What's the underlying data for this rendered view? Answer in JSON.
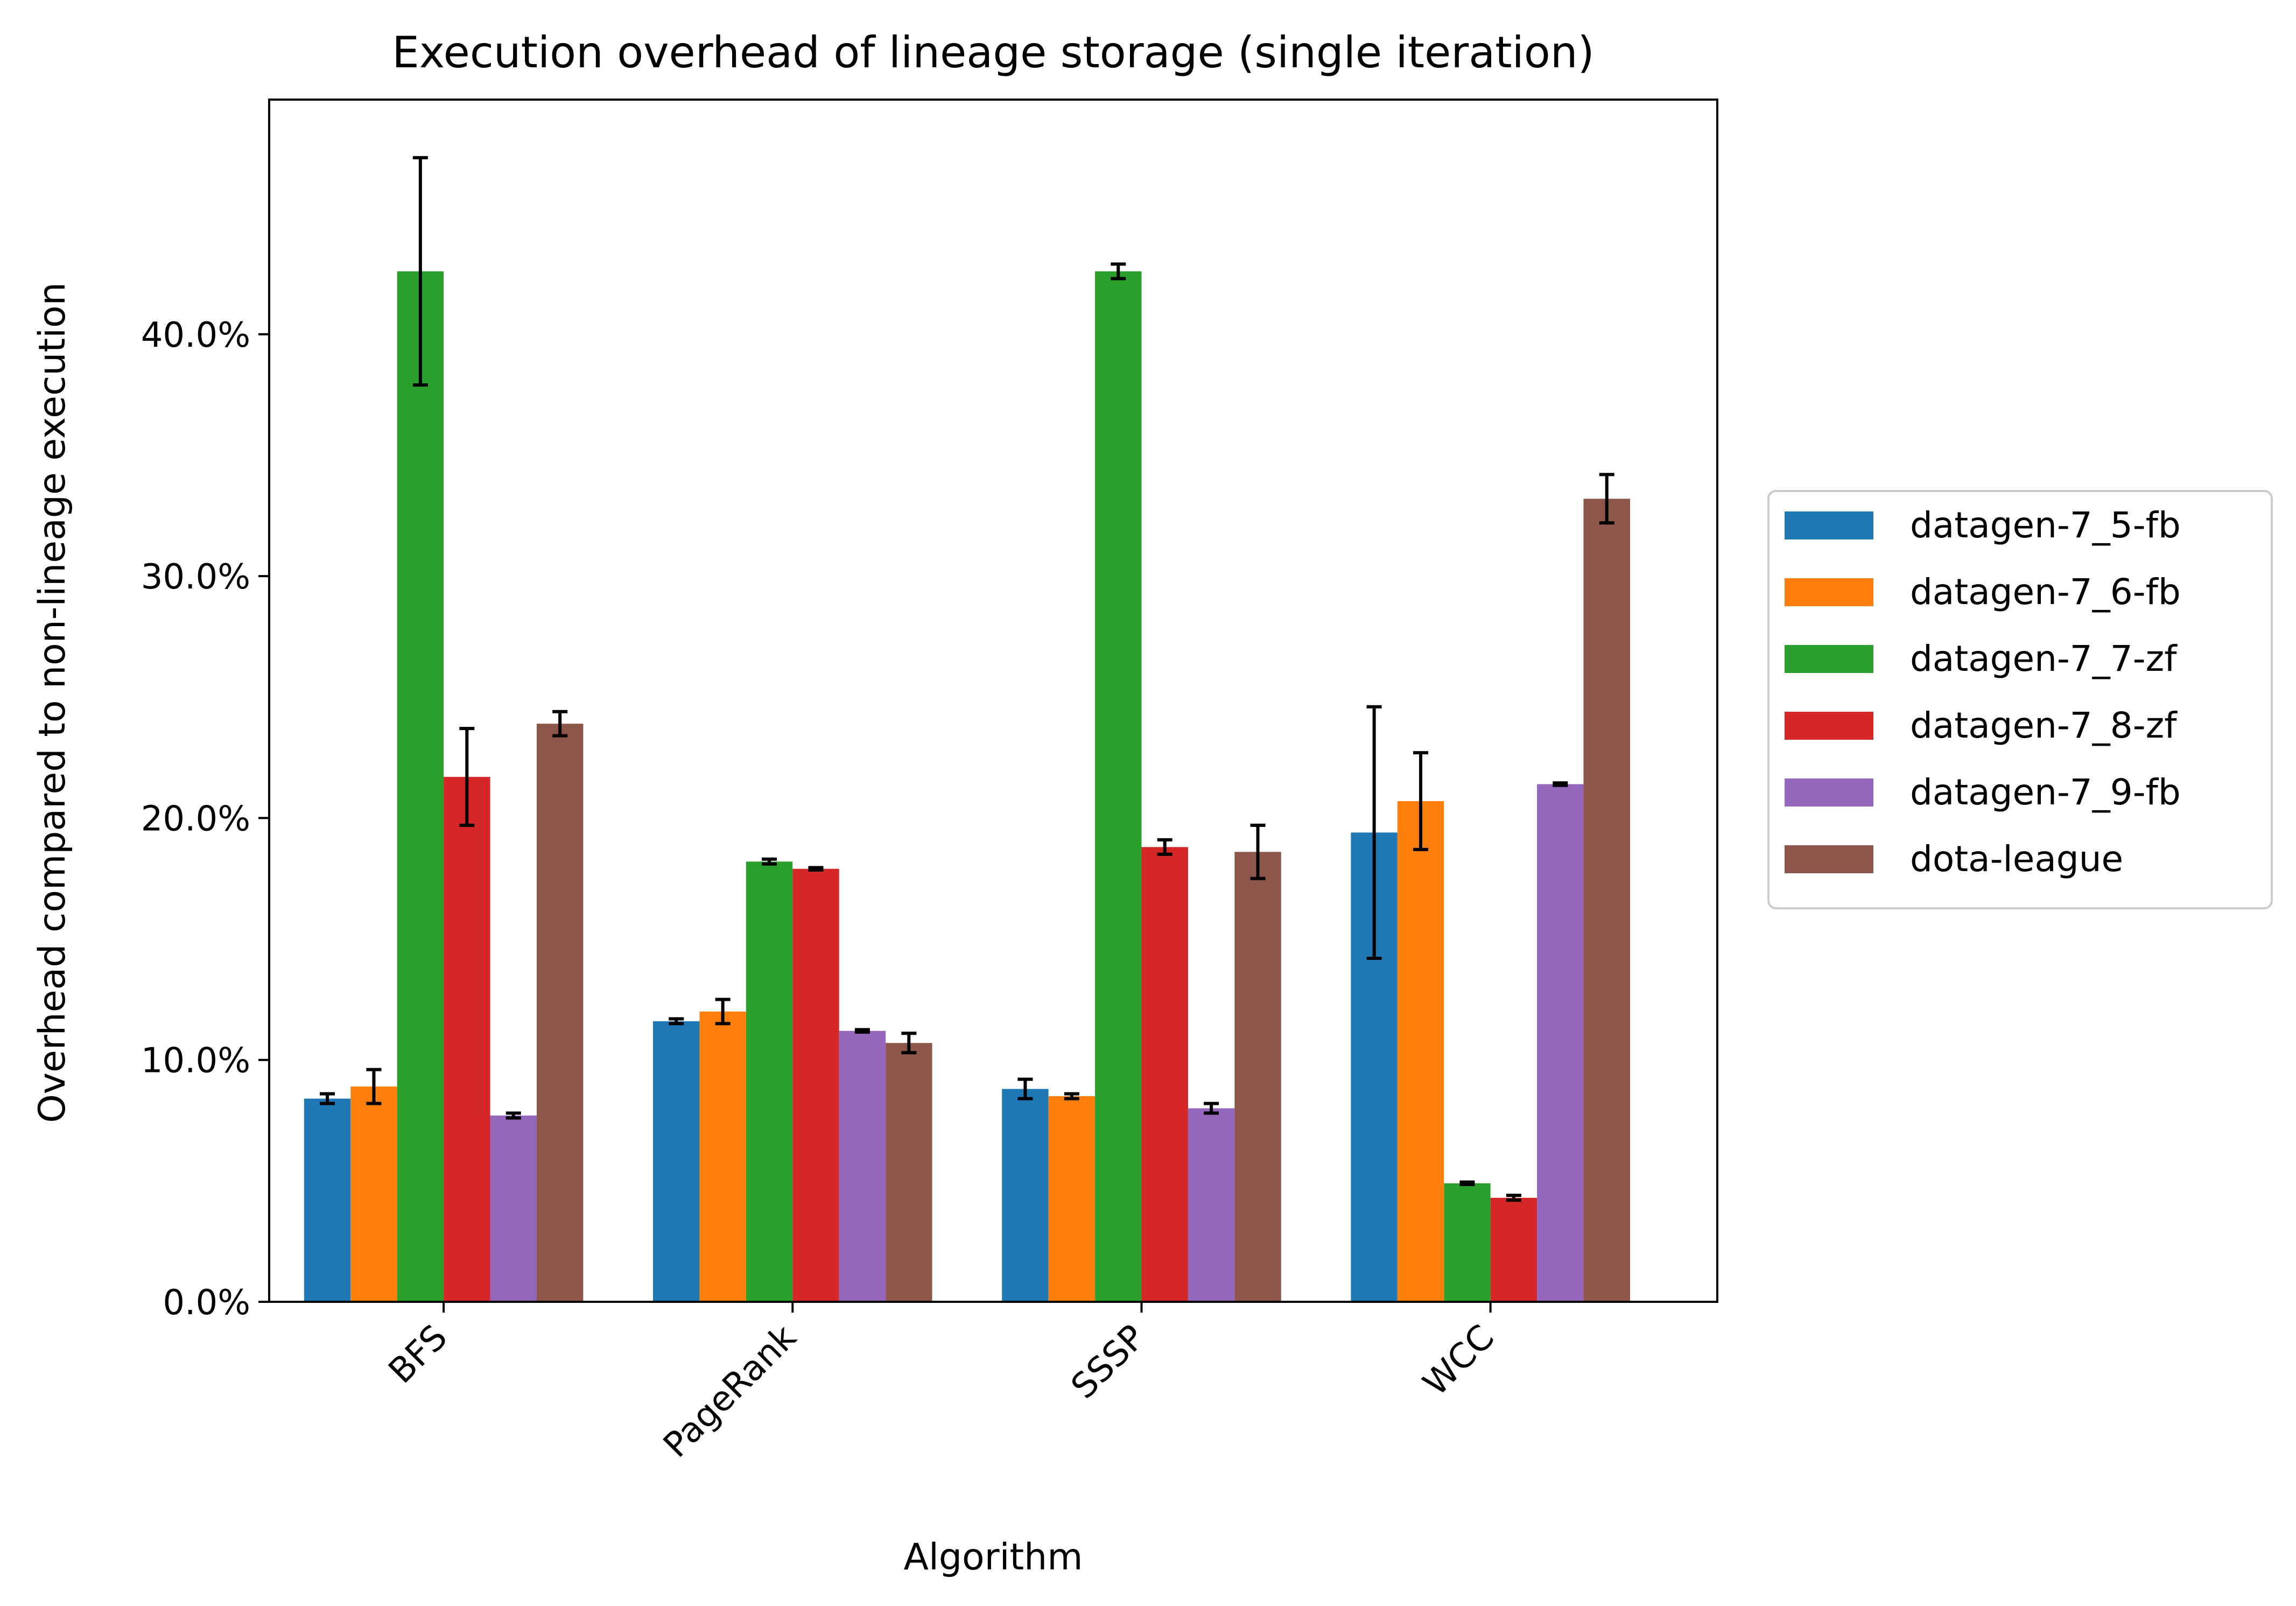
{
  "chart_data": {
    "type": "bar",
    "title": "Execution overhead of lineage storage (single iteration)",
    "xlabel": "Algorithm",
    "ylabel": "Overhead compared to non-lineage execution",
    "categories": [
      "BFS",
      "PageRank",
      "SSSP",
      "WCC"
    ],
    "ylim": [
      0,
      0.497
    ],
    "yticks": [
      {
        "value": 0.0,
        "label": "0.0%"
      },
      {
        "value": 0.1,
        "label": "10.0%"
      },
      {
        "value": 0.2,
        "label": "20.0%"
      },
      {
        "value": 0.3,
        "label": "30.0%"
      },
      {
        "value": 0.4,
        "label": "40.0%"
      }
    ],
    "grid": false,
    "legend_position": "right",
    "error_bars": true,
    "series": [
      {
        "name": "datagen-7_5-fb",
        "color": "#1f77b4",
        "values": [
          0.084,
          0.116,
          0.088,
          0.194
        ],
        "errors": [
          0.002,
          0.001,
          0.004,
          0.052
        ]
      },
      {
        "name": "datagen-7_6-fb",
        "color": "#ff7f0e",
        "values": [
          0.089,
          0.12,
          0.085,
          0.207
        ],
        "errors": [
          0.007,
          0.005,
          0.001,
          0.02
        ]
      },
      {
        "name": "datagen-7_7-zf",
        "color": "#2ca02c",
        "values": [
          0.426,
          0.182,
          0.426,
          0.049
        ],
        "errors": [
          0.047,
          0.001,
          0.003,
          0.0005
        ]
      },
      {
        "name": "datagen-7_8-zf",
        "color": "#d62728",
        "values": [
          0.217,
          0.179,
          0.188,
          0.043
        ],
        "errors": [
          0.02,
          0.0005,
          0.003,
          0.001
        ]
      },
      {
        "name": "datagen-7_9-fb",
        "color": "#9467bd",
        "values": [
          0.077,
          0.112,
          0.08,
          0.214
        ],
        "errors": [
          0.001,
          0.0005,
          0.002,
          0.0005
        ]
      },
      {
        "name": "dota-league",
        "color": "#8c564b",
        "values": [
          0.239,
          0.107,
          0.186,
          0.332
        ],
        "errors": [
          0.005,
          0.004,
          0.011,
          0.01
        ]
      }
    ]
  }
}
